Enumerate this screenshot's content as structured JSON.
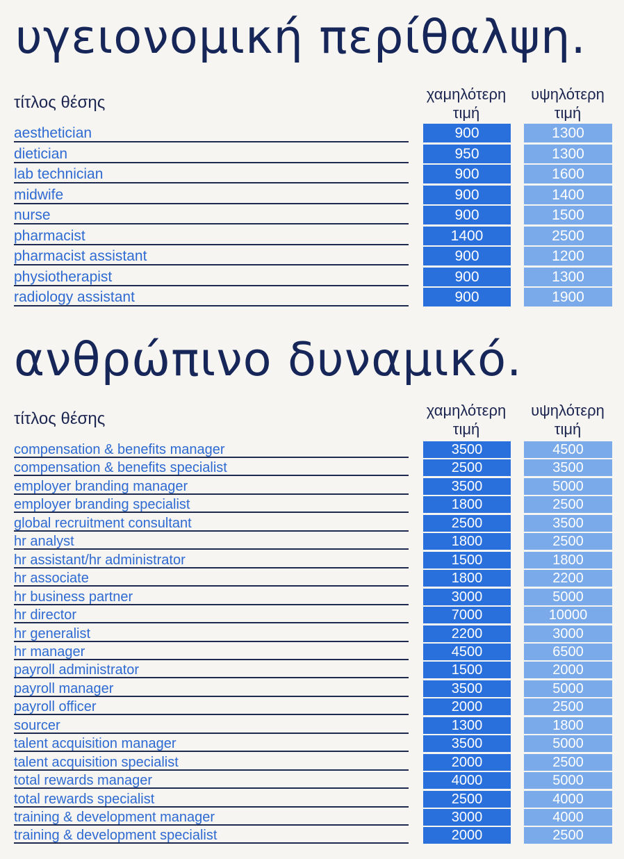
{
  "healthcare": {
    "title": "υγειονομική περίθαλψη.",
    "header": {
      "job": "τίτλος θέσης",
      "low": "χαμηλότερη τιμή",
      "high": "υψηλότερη τιμή"
    },
    "rows": [
      {
        "job": "aesthetician",
        "low": "900",
        "high": "1300"
      },
      {
        "job": "dietician",
        "low": "950",
        "high": "1300"
      },
      {
        "job": "lab technician",
        "low": "900",
        "high": "1600"
      },
      {
        "job": "midwife",
        "low": "900",
        "high": "1400"
      },
      {
        "job": "nurse",
        "low": "900",
        "high": "1500"
      },
      {
        "job": "pharmacist",
        "low": "1400",
        "high": "2500"
      },
      {
        "job": "pharmacist assistant",
        "low": "900",
        "high": "1200"
      },
      {
        "job": "physiotherapist",
        "low": "900",
        "high": "1300"
      },
      {
        "job": "radiology assistant",
        "low": "900",
        "high": "1900"
      }
    ]
  },
  "hr": {
    "title": "ανθρώπινο δυναμικό.",
    "header": {
      "job": "τίτλος θέσης",
      "low": "χαμηλότερη τιμή",
      "high": "υψηλότερη τιμή"
    },
    "rows": [
      {
        "job": "compensation & benefits manager",
        "low": "3500",
        "high": "4500"
      },
      {
        "job": "compensation & benefits specialist",
        "low": "2500",
        "high": "3500"
      },
      {
        "job": "employer branding manager",
        "low": "3500",
        "high": "5000"
      },
      {
        "job": "employer branding specialist",
        "low": "1800",
        "high": "2500"
      },
      {
        "job": "global recruitment consultant",
        "low": "2500",
        "high": "3500"
      },
      {
        "job": "hr analyst",
        "low": "1800",
        "high": "2500"
      },
      {
        "job": "hr assistant/hr administrator",
        "low": "1500",
        "high": "1800"
      },
      {
        "job": "hr associate",
        "low": "1800",
        "high": "2200"
      },
      {
        "job": "hr business partner",
        "low": "3000",
        "high": "5000"
      },
      {
        "job": "hr director",
        "low": "7000",
        "high": "10000"
      },
      {
        "job": "hr generalist",
        "low": "2200",
        "high": "3000"
      },
      {
        "job": "hr manager",
        "low": "4500",
        "high": "6500"
      },
      {
        "job": "payroll administrator",
        "low": "1500",
        "high": "2000"
      },
      {
        "job": "payroll manager",
        "low": "3500",
        "high": "5000"
      },
      {
        "job": "payroll officer",
        "low": "2000",
        "high": "2500"
      },
      {
        "job": "sourcer",
        "low": "1300",
        "high": "1800"
      },
      {
        "job": "talent acquisition manager",
        "low": "3500",
        "high": "5000"
      },
      {
        "job": "talent acquisition specialist",
        "low": "2000",
        "high": "2500"
      },
      {
        "job": "total rewards manager",
        "low": "4000",
        "high": "5000"
      },
      {
        "job": "total rewards specialist",
        "low": "2500",
        "high": "4000"
      },
      {
        "job": "training & development manager",
        "low": "3000",
        "high": "4000"
      },
      {
        "job": "training & development specialist",
        "low": "2000",
        "high": "2500"
      }
    ]
  }
}
